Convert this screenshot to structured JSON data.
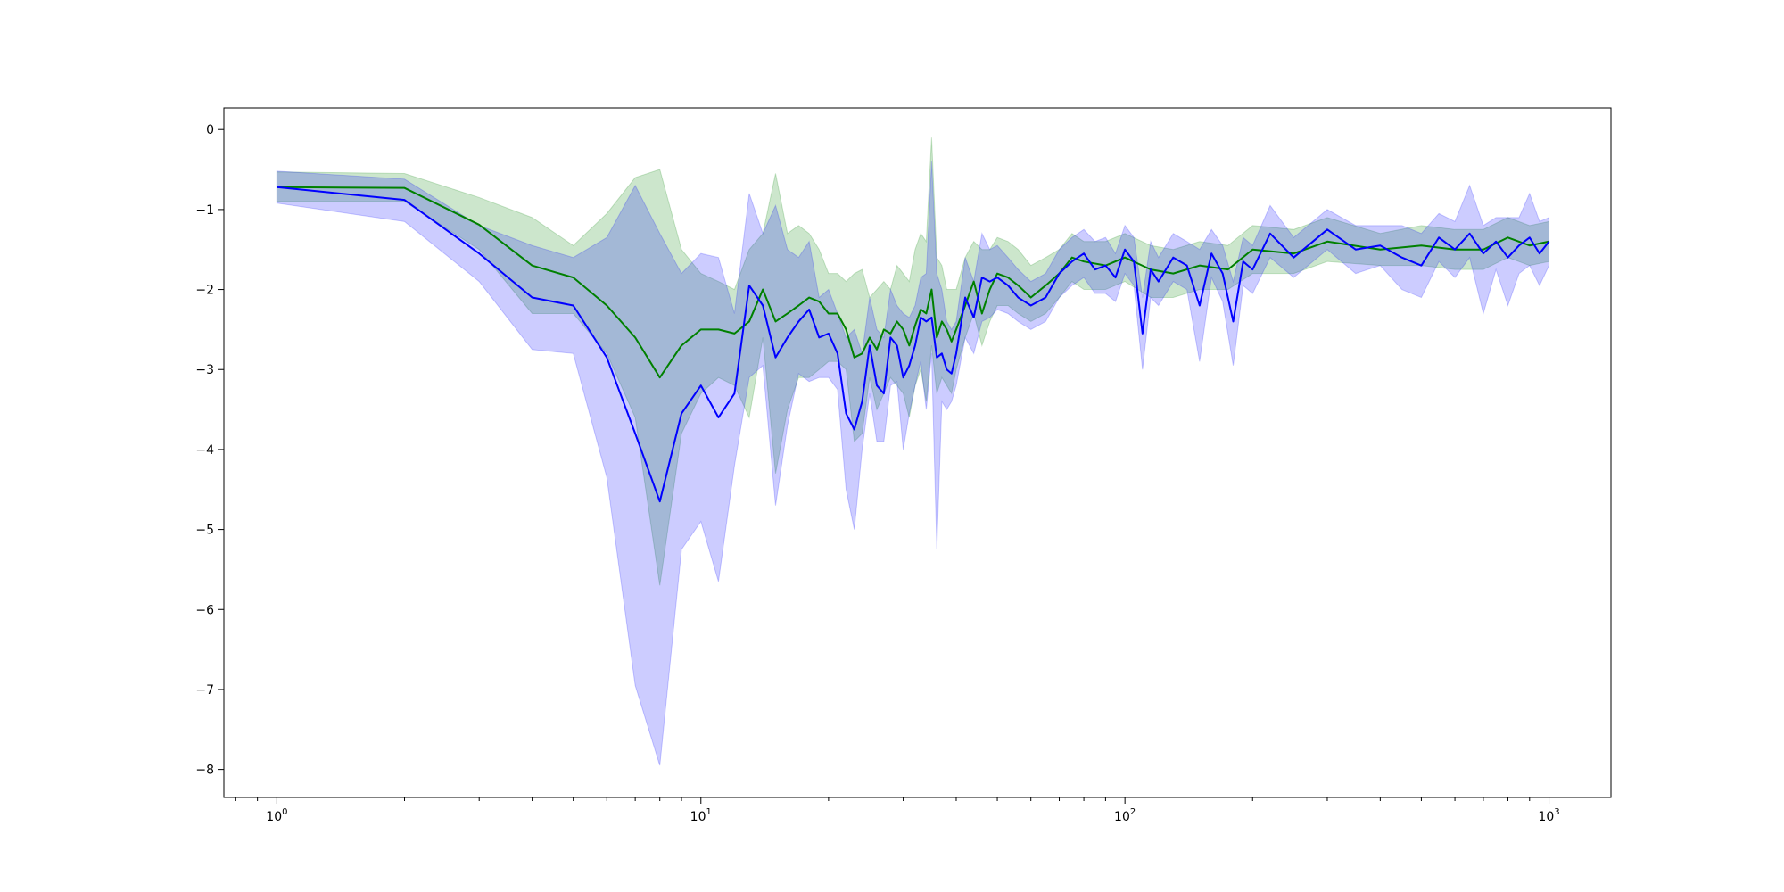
{
  "chart_data": {
    "type": "line",
    "xscale": "log",
    "xlim": [
      0.75,
      1400
    ],
    "ylim": [
      -8.35,
      0.27
    ],
    "grid": false,
    "legend": "none",
    "title": "",
    "xlabel": "",
    "ylabel": "",
    "y_ticks": [
      0,
      -1,
      -2,
      -3,
      -4,
      -5,
      -6,
      -7,
      -8
    ],
    "y_tick_labels": [
      "0",
      "−1",
      "−2",
      "−3",
      "−4",
      "−5",
      "−6",
      "−7",
      "−8"
    ],
    "x_ticks": [
      1,
      10,
      100,
      1000
    ],
    "x_tick_labels": [
      {
        "base": "10",
        "exp": "0"
      },
      {
        "base": "10",
        "exp": "1"
      },
      {
        "base": "10",
        "exp": "2"
      },
      {
        "base": "10",
        "exp": "3"
      }
    ],
    "series": [
      {
        "color": "#008000",
        "band_color": "#008000",
        "band_opacity": 0.2,
        "x": [
          1,
          2,
          3,
          4,
          5,
          6,
          7,
          8,
          9,
          10,
          11,
          12,
          13,
          14,
          15,
          16,
          17,
          18,
          19,
          20,
          21,
          22,
          23,
          24,
          25,
          26,
          27,
          28,
          29,
          30,
          31,
          32,
          33,
          34,
          35,
          36,
          37,
          38,
          39,
          40,
          42,
          44,
          46,
          48,
          50,
          53,
          56,
          60,
          65,
          70,
          75,
          80,
          90,
          100,
          115,
          130,
          150,
          175,
          200,
          250,
          300,
          400,
          500,
          600,
          700,
          800,
          900,
          1000
        ],
        "y": [
          -0.72,
          -0.73,
          -1.19,
          -1.7,
          -1.85,
          -2.2,
          -2.6,
          -3.1,
          -2.7,
          -2.5,
          -2.5,
          -2.55,
          -2.4,
          -2.0,
          -2.4,
          -2.3,
          -2.2,
          -2.1,
          -2.15,
          -2.3,
          -2.3,
          -2.5,
          -2.85,
          -2.8,
          -2.6,
          -2.75,
          -2.5,
          -2.55,
          -2.4,
          -2.5,
          -2.7,
          -2.45,
          -2.25,
          -2.3,
          -2.0,
          -2.6,
          -2.4,
          -2.5,
          -2.65,
          -2.5,
          -2.2,
          -1.9,
          -2.3,
          -2.0,
          -1.8,
          -1.85,
          -1.95,
          -2.1,
          -1.95,
          -1.8,
          -1.6,
          -1.65,
          -1.7,
          -1.6,
          -1.75,
          -1.8,
          -1.7,
          -1.75,
          -1.5,
          -1.55,
          -1.4,
          -1.5,
          -1.45,
          -1.5,
          -1.5,
          -1.35,
          -1.45,
          -1.4
        ],
        "lower": [
          -0.9,
          -0.9,
          -1.5,
          -2.3,
          -2.3,
          -2.8,
          -3.6,
          -5.7,
          -3.8,
          -3.3,
          -3.1,
          -3.2,
          -3.6,
          -2.6,
          -4.3,
          -3.5,
          -3.1,
          -3.1,
          -3.0,
          -2.9,
          -2.9,
          -3.0,
          -3.9,
          -3.8,
          -3.1,
          -3.5,
          -3.3,
          -3.1,
          -3.2,
          -3.3,
          -3.6,
          -3.2,
          -3.0,
          -3.4,
          -2.7,
          -3.3,
          -3.1,
          -3.2,
          -3.3,
          -3.0,
          -2.6,
          -2.3,
          -2.7,
          -2.4,
          -2.2,
          -2.2,
          -2.3,
          -2.4,
          -2.3,
          -2.1,
          -1.9,
          -2.0,
          -2.0,
          -1.9,
          -2.1,
          -2.1,
          -2.0,
          -2.0,
          -1.8,
          -1.8,
          -1.65,
          -1.7,
          -1.7,
          -1.75,
          -1.75,
          -1.6,
          -1.7,
          -1.65
        ],
        "upper": [
          -0.53,
          -0.55,
          -0.85,
          -1.1,
          -1.45,
          -1.05,
          -0.6,
          -0.5,
          -1.5,
          -1.8,
          -1.9,
          -2.0,
          -1.5,
          -1.3,
          -0.55,
          -1.3,
          -1.2,
          -1.3,
          -1.5,
          -1.8,
          -1.8,
          -1.9,
          -1.8,
          -1.75,
          -2.1,
          -2.0,
          -1.9,
          -2.0,
          -1.7,
          -1.8,
          -1.9,
          -1.5,
          -1.3,
          -1.4,
          -0.1,
          -1.6,
          -1.7,
          -2.0,
          -2.0,
          -2.0,
          -1.6,
          -1.4,
          -1.5,
          -1.5,
          -1.35,
          -1.4,
          -1.5,
          -1.7,
          -1.6,
          -1.5,
          -1.3,
          -1.4,
          -1.4,
          -1.3,
          -1.45,
          -1.5,
          -1.4,
          -1.45,
          -1.2,
          -1.25,
          -1.1,
          -1.3,
          -1.2,
          -1.25,
          -1.25,
          -1.1,
          -1.2,
          -1.15
        ]
      },
      {
        "color": "#0000ff",
        "band_color": "#0000ff",
        "band_opacity": 0.2,
        "x": [
          1,
          2,
          3,
          4,
          5,
          6,
          7,
          8,
          9,
          10,
          11,
          12,
          13,
          14,
          15,
          16,
          17,
          18,
          19,
          20,
          21,
          22,
          23,
          24,
          25,
          26,
          27,
          28,
          29,
          30,
          31,
          32,
          33,
          34,
          35,
          36,
          37,
          38,
          39,
          40,
          42,
          44,
          46,
          48,
          50,
          53,
          56,
          60,
          65,
          70,
          75,
          80,
          85,
          90,
          95,
          100,
          105,
          110,
          115,
          120,
          130,
          140,
          150,
          160,
          170,
          180,
          190,
          200,
          220,
          250,
          300,
          350,
          400,
          450,
          500,
          550,
          600,
          650,
          700,
          750,
          800,
          850,
          900,
          950,
          1000
        ],
        "y": [
          -0.72,
          -0.88,
          -1.55,
          -2.1,
          -2.2,
          -2.85,
          -3.8,
          -4.65,
          -3.55,
          -3.2,
          -3.6,
          -3.3,
          -1.95,
          -2.2,
          -2.85,
          -2.6,
          -2.4,
          -2.25,
          -2.6,
          -2.55,
          -2.8,
          -3.55,
          -3.75,
          -3.4,
          -2.7,
          -3.2,
          -3.3,
          -2.6,
          -2.7,
          -3.1,
          -2.95,
          -2.7,
          -2.35,
          -2.4,
          -2.35,
          -2.85,
          -2.8,
          -3.0,
          -3.05,
          -2.8,
          -2.1,
          -2.35,
          -1.85,
          -1.9,
          -1.85,
          -1.95,
          -2.1,
          -2.2,
          -2.1,
          -1.8,
          -1.65,
          -1.55,
          -1.75,
          -1.7,
          -1.85,
          -1.5,
          -1.65,
          -2.55,
          -1.75,
          -1.9,
          -1.6,
          -1.7,
          -2.2,
          -1.55,
          -1.8,
          -2.4,
          -1.65,
          -1.75,
          -1.3,
          -1.6,
          -1.25,
          -1.5,
          -1.45,
          -1.6,
          -1.7,
          -1.35,
          -1.5,
          -1.3,
          -1.55,
          -1.4,
          -1.6,
          -1.45,
          -1.35,
          -1.55,
          -1.4
        ],
        "lower": [
          -0.92,
          -1.15,
          -1.9,
          -2.75,
          -2.8,
          -4.35,
          -6.95,
          -7.95,
          -5.25,
          -4.9,
          -5.65,
          -4.2,
          -3.1,
          -2.95,
          -4.7,
          -3.7,
          -3.05,
          -3.15,
          -3.1,
          -3.1,
          -3.25,
          -4.5,
          -5.0,
          -4.0,
          -3.3,
          -3.9,
          -3.9,
          -3.2,
          -3.15,
          -4.0,
          -3.55,
          -3.2,
          -2.9,
          -3.5,
          -2.8,
          -5.25,
          -3.4,
          -3.5,
          -3.4,
          -3.2,
          -2.6,
          -2.8,
          -2.4,
          -2.35,
          -2.25,
          -2.3,
          -2.4,
          -2.5,
          -2.4,
          -2.1,
          -1.95,
          -1.85,
          -2.05,
          -2.05,
          -2.15,
          -1.8,
          -1.95,
          -3.0,
          -2.1,
          -2.2,
          -1.9,
          -2.0,
          -2.9,
          -1.85,
          -2.15,
          -2.95,
          -1.95,
          -2.05,
          -1.6,
          -1.85,
          -1.5,
          -1.8,
          -1.7,
          -2.0,
          -2.1,
          -1.65,
          -1.85,
          -1.6,
          -2.3,
          -1.75,
          -2.2,
          -1.8,
          -1.7,
          -1.95,
          -1.7
        ],
        "upper": [
          -0.52,
          -0.62,
          -1.2,
          -1.45,
          -1.6,
          -1.35,
          -0.7,
          -1.3,
          -1.8,
          -1.55,
          -1.6,
          -2.3,
          -0.8,
          -1.3,
          -0.95,
          -1.5,
          -1.6,
          -1.4,
          -2.1,
          -2.0,
          -2.3,
          -2.6,
          -2.5,
          -2.8,
          -2.1,
          -2.5,
          -2.6,
          -2.0,
          -2.2,
          -2.3,
          -2.35,
          -2.2,
          -1.85,
          -1.8,
          -0.4,
          -1.8,
          -2.0,
          -2.4,
          -2.5,
          -2.4,
          -1.6,
          -1.9,
          -1.3,
          -1.5,
          -1.45,
          -1.6,
          -1.75,
          -1.9,
          -1.8,
          -1.5,
          -1.35,
          -1.25,
          -1.4,
          -1.35,
          -1.55,
          -1.2,
          -1.35,
          -2.1,
          -1.4,
          -1.6,
          -1.3,
          -1.4,
          -1.5,
          -1.25,
          -1.45,
          -1.9,
          -1.35,
          -1.45,
          -0.95,
          -1.35,
          -1.0,
          -1.2,
          -1.2,
          -1.2,
          -1.3,
          -1.05,
          -1.15,
          -0.7,
          -1.2,
          -1.1,
          -1.1,
          -1.1,
          -0.8,
          -1.15,
          -1.1
        ]
      }
    ]
  }
}
